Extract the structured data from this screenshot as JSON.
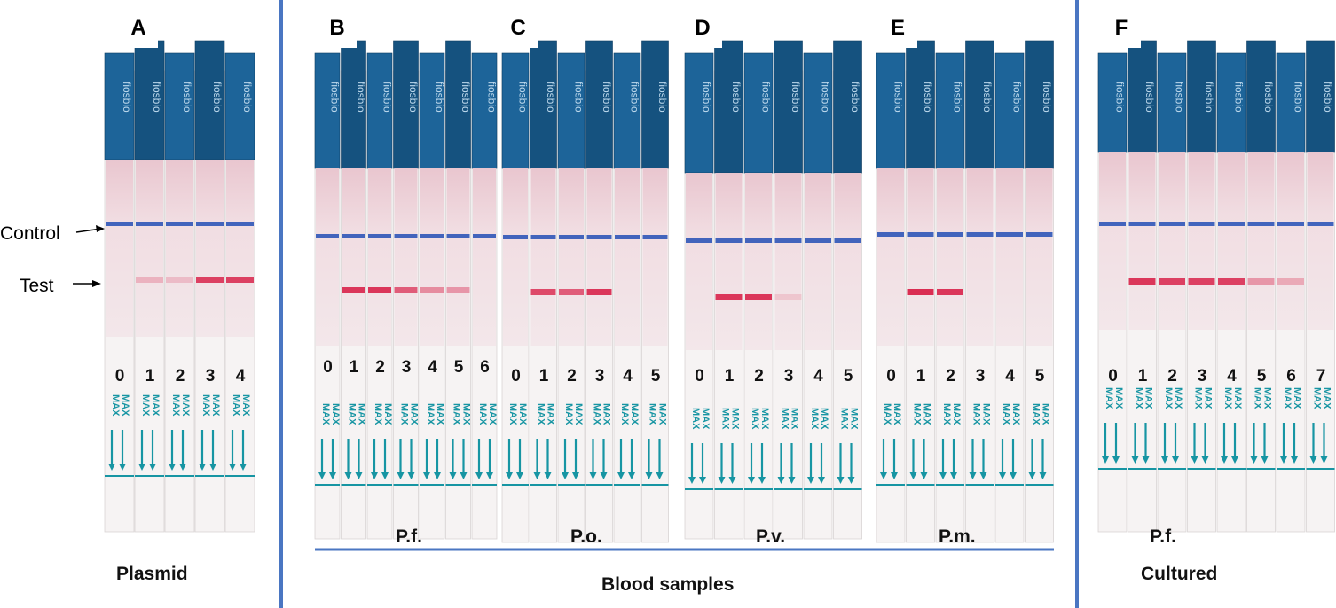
{
  "colors": {
    "cap_blue": "#1d6499",
    "cap_blue_dark": "#15527f",
    "strip_white": "#f6f3f3",
    "membrane_pink": "#efd6dc",
    "control_line": "#2f56b8",
    "test_line": "#d8234a",
    "max_teal": "#1795a3",
    "divider_blue": "#4a76c2"
  },
  "brand_text": "fiosbio",
  "max_text": "MAX",
  "side_labels": {
    "control": "Control",
    "test": "Test"
  },
  "footer_label": "Blood samples",
  "panels": [
    {
      "letter": "A",
      "group_label": "Plasmid",
      "lanes": [
        "0",
        "1",
        "2",
        "3",
        "4"
      ],
      "test_intensity": [
        0,
        0.25,
        0.2,
        0.85,
        0.85
      ]
    },
    {
      "letter": "B",
      "group_label": "P.f.",
      "lanes": [
        "0",
        "1",
        "2",
        "3",
        "4",
        "5",
        "6"
      ],
      "test_intensity": [
        0,
        0.9,
        0.9,
        0.7,
        0.45,
        0.4,
        0
      ]
    },
    {
      "letter": "C",
      "group_label": "P.o.",
      "lanes": [
        "0",
        "1",
        "2",
        "3",
        "4",
        "5"
      ],
      "test_intensity": [
        0,
        0.8,
        0.7,
        0.9,
        0,
        0
      ]
    },
    {
      "letter": "D",
      "group_label": "P.v.",
      "lanes": [
        "0",
        "1",
        "2",
        "3",
        "4",
        "5"
      ],
      "test_intensity": [
        0,
        0.9,
        0.9,
        0.15,
        0,
        0
      ]
    },
    {
      "letter": "E",
      "group_label": "P.m.",
      "lanes": [
        "0",
        "1",
        "2",
        "3",
        "4",
        "5"
      ],
      "test_intensity": [
        0,
        0.95,
        0.9,
        0,
        0,
        0
      ]
    },
    {
      "letter": "F",
      "group_label": "P.f.",
      "subgroup_label": "Cultured",
      "lanes": [
        "0",
        "1",
        "2",
        "3",
        "4",
        "5",
        "6",
        "7"
      ],
      "test_intensity": [
        0,
        0.9,
        0.85,
        0.85,
        0.85,
        0.4,
        0.3,
        0
      ]
    }
  ]
}
